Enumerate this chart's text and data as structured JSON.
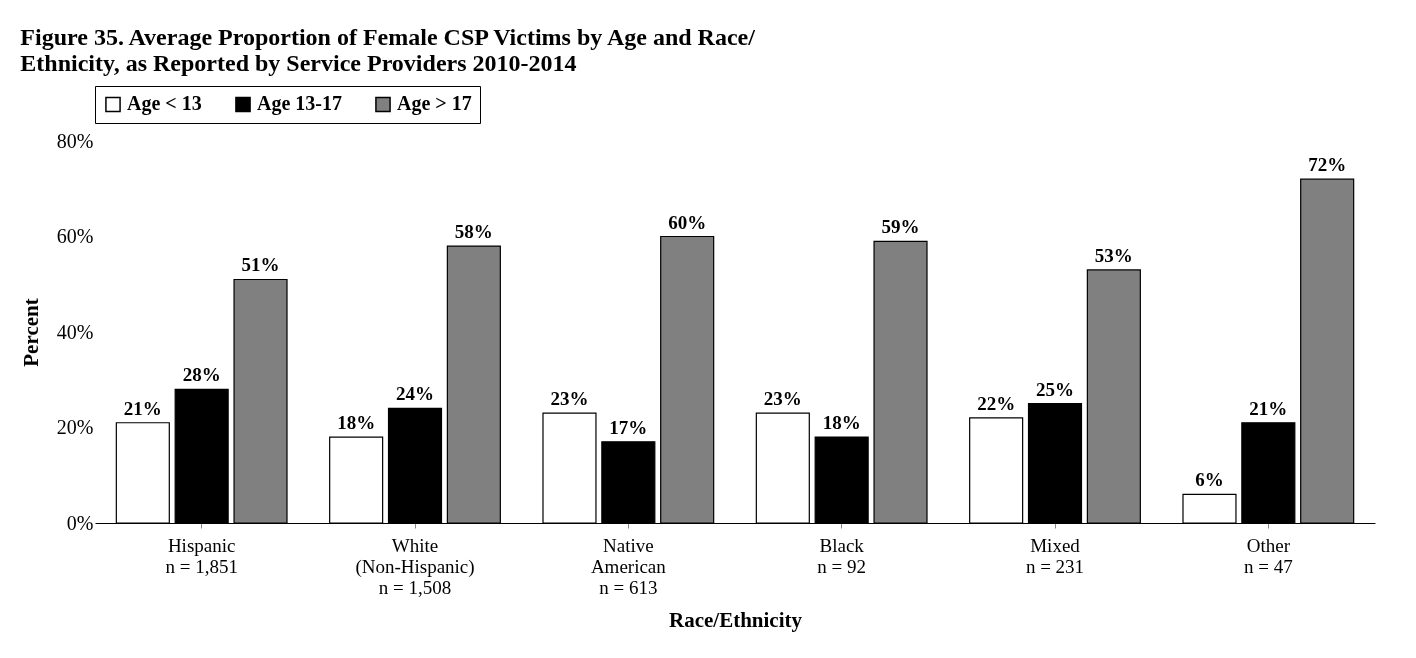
{
  "chart_data": {
    "type": "bar",
    "title": "Figure 35.  Average Proportion of Female CSP Victims by Age and Race/\nEthnicity, as Reported by Service Providers 2010-2014",
    "xlabel": "Race/Ethnicity",
    "ylabel": "Percent",
    "categories": [
      "Hispanic\nn = 1,851",
      "White\n(Non-Hispanic)\nn = 1,508",
      "Native\nAmerican\nn = 613",
      "Black\nn = 92",
      "Mixed\nn = 231",
      "Other\nn = 47"
    ],
    "series": [
      {
        "name": "Age < 13",
        "color": "#ffffff",
        "values": [
          21,
          18,
          23,
          23,
          22,
          6
        ],
        "value_labels": [
          "21%",
          "18%",
          "23%",
          "23%",
          "22%",
          "6%"
        ]
      },
      {
        "name": "Age 13-17",
        "color": "#000000",
        "values": [
          28,
          24,
          17,
          18,
          25,
          21
        ],
        "value_labels": [
          "28%",
          "24%",
          "17%",
          "18%",
          "25%",
          "21%"
        ]
      },
      {
        "name": "Age > 17",
        "color": "#808080",
        "values": [
          51,
          58,
          60,
          59,
          53,
          72
        ],
        "value_labels": [
          "51%",
          "58%",
          "60%",
          "59%",
          "53%",
          "72%"
        ]
      }
    ],
    "ylim": [
      0,
      80
    ],
    "yticks": [
      {
        "value": 0,
        "label": "0%"
      },
      {
        "value": 20,
        "label": "20%"
      },
      {
        "value": 40,
        "label": "40%"
      },
      {
        "value": 60,
        "label": "60%"
      },
      {
        "value": 80,
        "label": "80%"
      }
    ],
    "grid": false,
    "legend": "top"
  }
}
